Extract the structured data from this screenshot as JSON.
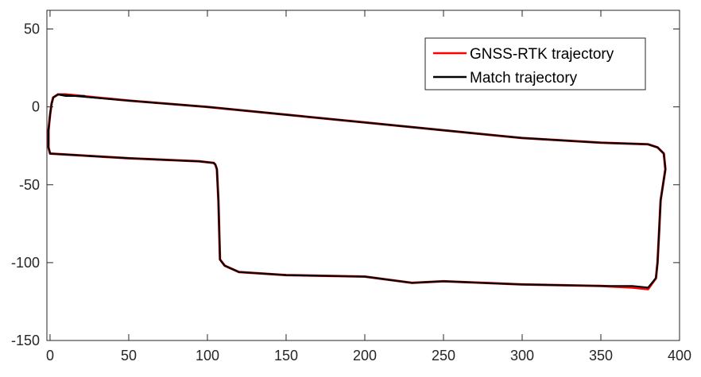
{
  "chart_data": {
    "type": "line",
    "xlim": [
      -2,
      400
    ],
    "ylim": [
      -150,
      62
    ],
    "x_ticks": [
      "0",
      "50",
      "100",
      "150",
      "200",
      "250",
      "300",
      "350",
      "400"
    ],
    "y_ticks": [
      "50",
      "0",
      "-50",
      "-100",
      "-150"
    ],
    "grid": false,
    "legend_position": "top-right",
    "series": [
      {
        "name": "GNSS-RTK trajectory",
        "color": "#ff0000",
        "x": [
          5,
          10,
          50,
          100,
          150,
          200,
          250,
          300,
          350,
          380,
          386,
          390,
          391,
          388,
          387,
          386,
          385,
          380,
          370,
          350,
          300,
          250,
          230,
          200,
          150,
          120,
          111,
          108,
          107,
          106,
          105,
          104,
          95,
          50,
          0,
          -1,
          -1,
          0,
          1,
          2,
          5
        ],
        "y": [
          8,
          8,
          4,
          0,
          -5,
          -10,
          -15,
          -20,
          -23,
          -24,
          -26,
          -30,
          -40,
          -60,
          -80,
          -100,
          -110,
          -117,
          -116,
          -115,
          -114,
          -112,
          -113,
          -109,
          -108,
          -106,
          -102,
          -98,
          -60,
          -40,
          -37,
          -36,
          -35,
          -33,
          -30,
          -26,
          -15,
          -5,
          2,
          6,
          8
        ]
      },
      {
        "name": "Match trajectory",
        "color": "#000000",
        "x": [
          22,
          10,
          5,
          10,
          50,
          100,
          150,
          200,
          250,
          300,
          350,
          380,
          386,
          390,
          391,
          388,
          387,
          386,
          385,
          380,
          370,
          350,
          300,
          250,
          230,
          200,
          150,
          120,
          111,
          108,
          107,
          106,
          105,
          104,
          95,
          50,
          0,
          -1,
          -1,
          0,
          1,
          2,
          5
        ],
        "y": [
          7,
          7,
          8,
          7.5,
          4,
          0,
          -5,
          -10,
          -15,
          -20,
          -23,
          -24,
          -26,
          -30,
          -40,
          -60,
          -80,
          -100,
          -110,
          -116,
          -115,
          -115,
          -114,
          -112,
          -113,
          -109,
          -108,
          -106,
          -102,
          -98,
          -60,
          -40,
          -37,
          -36,
          -35,
          -33,
          -30,
          -26,
          -15,
          -5,
          2,
          6,
          8
        ]
      }
    ]
  }
}
